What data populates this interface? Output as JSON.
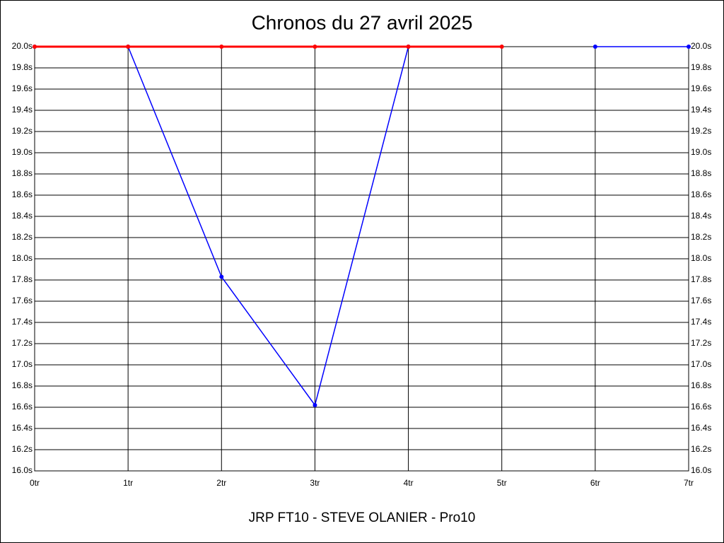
{
  "chart_data": {
    "type": "line",
    "title": "Chronos du 27 avril 2025",
    "xlabel": "JRP FT10 - STEVE OLANIER - Pro10",
    "categories": [
      "0tr",
      "1tr",
      "2tr",
      "3tr",
      "4tr",
      "5tr",
      "6tr",
      "7tr"
    ],
    "series": [
      {
        "color": "#0000ff",
        "values": [
          20.0,
          20.0,
          17.83,
          16.62,
          20.0,
          null,
          20.0,
          20.0
        ]
      },
      {
        "color": "#ff0000",
        "values": [
          20.0,
          20.0,
          20.0,
          20.0,
          20.0,
          20.0,
          null,
          null
        ]
      }
    ],
    "ylim": [
      16.0,
      20.0
    ],
    "yticks": [
      {
        "value": 16.0,
        "label": "16.0s"
      },
      {
        "value": 16.2,
        "label": "16.2s"
      },
      {
        "value": 16.4,
        "label": "16.4s"
      },
      {
        "value": 16.6,
        "label": "16.6s"
      },
      {
        "value": 16.8,
        "label": "16.8s"
      },
      {
        "value": 17.0,
        "label": "17.0s"
      },
      {
        "value": 17.2,
        "label": "17.2s"
      },
      {
        "value": 17.4,
        "label": "17.4s"
      },
      {
        "value": 17.6,
        "label": "17.6s"
      },
      {
        "value": 17.8,
        "label": "17.8s"
      },
      {
        "value": 18.0,
        "label": "18.0s"
      },
      {
        "value": 18.2,
        "label": "18.2s"
      },
      {
        "value": 18.4,
        "label": "18.4s"
      },
      {
        "value": 18.6,
        "label": "18.6s"
      },
      {
        "value": 18.8,
        "label": "18.8s"
      },
      {
        "value": 19.0,
        "label": "19.0s"
      },
      {
        "value": 19.2,
        "label": "19.2s"
      },
      {
        "value": 19.4,
        "label": "19.4s"
      },
      {
        "value": 19.6,
        "label": "19.6s"
      },
      {
        "value": 19.8,
        "label": "19.8s"
      },
      {
        "value": 20.0,
        "label": "20.0s"
      }
    ],
    "grid": true
  }
}
